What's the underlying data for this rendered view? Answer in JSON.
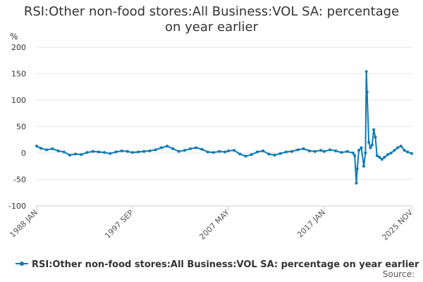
{
  "chart_data": {
    "type": "line",
    "title_line1": "RSI:Other non-food stores:All Business:VOL SA: percentage",
    "title_line2": "on year earlier",
    "ylabel": "%",
    "xlabel": "",
    "ylim": [
      -100,
      200
    ],
    "y_ticks": [
      200,
      150,
      100,
      50,
      0,
      -50,
      -100
    ],
    "x_range": [
      "1988 JAN",
      "2025 NOV"
    ],
    "x_ticks": [
      "1988 JAN",
      "1997 SEP",
      "2007 MAY",
      "2017 JAN",
      "2025 NOV"
    ],
    "grid": "horizontal",
    "legend": "bottom",
    "color": "#0b7bb5",
    "series": [
      {
        "name": "RSI:Other non-food stores:All Business:VOL SA: percentage on year earlier",
        "points": [
          [
            "1988 JAN",
            13
          ],
          [
            "1988 JUN",
            9
          ],
          [
            "1989 JAN",
            6
          ],
          [
            "1989 AUG",
            8
          ],
          [
            "1990 MAR",
            4
          ],
          [
            "1990 OCT",
            2
          ],
          [
            "1991 MAY",
            -4
          ],
          [
            "1991 DEC",
            -2
          ],
          [
            "1992 JUL",
            -3
          ],
          [
            "1993 FEB",
            1
          ],
          [
            "1993 SEP",
            3
          ],
          [
            "1994 APR",
            2
          ],
          [
            "1994 NOV",
            1
          ],
          [
            "1995 JUN",
            -1
          ],
          [
            "1996 JAN",
            2
          ],
          [
            "1996 AUG",
            4
          ],
          [
            "1997 MAR",
            3
          ],
          [
            "1997 SEP",
            1
          ],
          [
            "1998 APR",
            2
          ],
          [
            "1998 NOV",
            3
          ],
          [
            "1999 JUN",
            4
          ],
          [
            "2000 JAN",
            6
          ],
          [
            "2000 AUG",
            10
          ],
          [
            "2001 MAR",
            13
          ],
          [
            "2001 OCT",
            8
          ],
          [
            "2002 MAY",
            3
          ],
          [
            "2002 DEC",
            5
          ],
          [
            "2003 JUL",
            8
          ],
          [
            "2004 FEB",
            10
          ],
          [
            "2004 SEP",
            7
          ],
          [
            "2005 APR",
            2
          ],
          [
            "2005 NOV",
            1
          ],
          [
            "2006 JUN",
            3
          ],
          [
            "2007 JAN",
            2
          ],
          [
            "2007 MAY",
            4
          ],
          [
            "2007 DEC",
            5
          ],
          [
            "2008 JUL",
            -2
          ],
          [
            "2009 FEB",
            -6
          ],
          [
            "2009 SEP",
            -3
          ],
          [
            "2010 APR",
            2
          ],
          [
            "2010 NOV",
            4
          ],
          [
            "2011 JUN",
            -2
          ],
          [
            "2012 JAN",
            -4
          ],
          [
            "2012 AUG",
            -1
          ],
          [
            "2013 MAR",
            2
          ],
          [
            "2013 OCT",
            3
          ],
          [
            "2014 MAY",
            6
          ],
          [
            "2014 DEC",
            8
          ],
          [
            "2015 JUL",
            4
          ],
          [
            "2016 FEB",
            3
          ],
          [
            "2016 SEP",
            5
          ],
          [
            "2017 JAN",
            3
          ],
          [
            "2017 AUG",
            6
          ],
          [
            "2018 MAR",
            4
          ],
          [
            "2018 OCT",
            1
          ],
          [
            "2019 MAY",
            3
          ],
          [
            "2019 DEC",
            0
          ],
          [
            "2020 FEB",
            -5
          ],
          [
            "2020 APR",
            -57
          ],
          [
            "2020 MAY",
            -30
          ],
          [
            "2020 JUL",
            5
          ],
          [
            "2020 OCT",
            10
          ],
          [
            "2021 JAN",
            -25
          ],
          [
            "2021 MAR",
            0
          ],
          [
            "2021 APR",
            154
          ],
          [
            "2021 MAY",
            115
          ],
          [
            "2021 JUL",
            20
          ],
          [
            "2021 SEP",
            10
          ],
          [
            "2021 NOV",
            15
          ],
          [
            "2022 JAN",
            44
          ],
          [
            "2022 MAR",
            30
          ],
          [
            "2022 MAY",
            -5
          ],
          [
            "2022 AUG",
            -8
          ],
          [
            "2022 NOV",
            -12
          ],
          [
            "2023 FEB",
            -8
          ],
          [
            "2023 JUN",
            -3
          ],
          [
            "2023 OCT",
            0
          ],
          [
            "2024 FEB",
            5
          ],
          [
            "2024 JUN",
            10
          ],
          [
            "2024 OCT",
            13
          ],
          [
            "2025 FEB",
            5
          ],
          [
            "2025 JUN",
            2
          ],
          [
            "2025 NOV",
            -1
          ]
        ]
      }
    ]
  },
  "legend": {
    "label": "RSI:Other non-food stores:All Business:VOL SA: percentage on year earlier"
  },
  "footer": {
    "source_label": "Source:"
  }
}
